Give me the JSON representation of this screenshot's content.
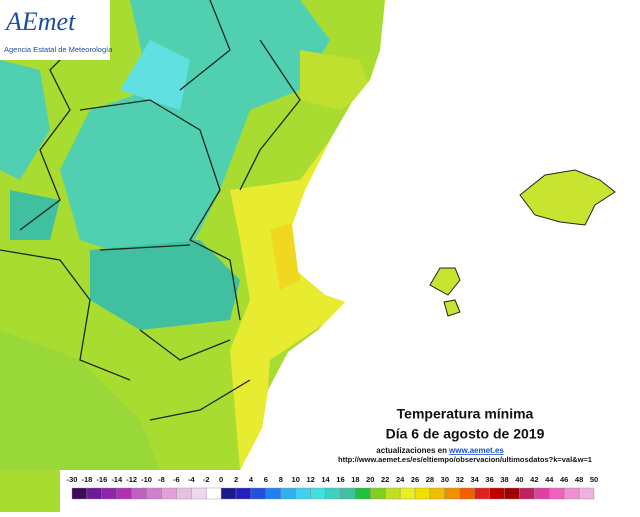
{
  "header": {
    "logo": "AEmet",
    "agency": "Agencia Estatal de Meteorología"
  },
  "caption": {
    "title": "Temperatura mínima",
    "date": "Día 6 de agosto de 2019",
    "updates_text": "actualizaciones en",
    "updates_link": "www.aemet.es",
    "url": "http://www.aemet.es/es/eltiempo/observacion/ultimosdatos?k=val&w=1"
  },
  "legend": {
    "labels": [
      -30,
      -18,
      -16,
      -14,
      -12,
      -10,
      -8,
      -6,
      -4,
      -2,
      0,
      2,
      4,
      6,
      8,
      10,
      12,
      14,
      16,
      18,
      20,
      22,
      24,
      26,
      28,
      30,
      32,
      34,
      36,
      38,
      40,
      42,
      44,
      46,
      48,
      50
    ],
    "colors": [
      "#3b0a5c",
      "#6a1b9a",
      "#8e24aa",
      "#b030b0",
      "#c060c0",
      "#d080d0",
      "#e0a0d8",
      "#e8c0e0",
      "#f0d8f0",
      "#ffffff",
      "#1a1a8c",
      "#2020c0",
      "#2050e0",
      "#2080f0",
      "#30b0f0",
      "#40d0f0",
      "#40e0e0",
      "#40d0c0",
      "#40c0a0",
      "#20c040",
      "#80d020",
      "#c0e020",
      "#e8f020",
      "#f0e000",
      "#f0c000",
      "#f09000",
      "#f06000",
      "#e02020",
      "#c00000",
      "#a00000",
      "#c02060",
      "#e040a0",
      "#f060c0",
      "#f090d0",
      "#f0b0e0"
    ]
  }
}
